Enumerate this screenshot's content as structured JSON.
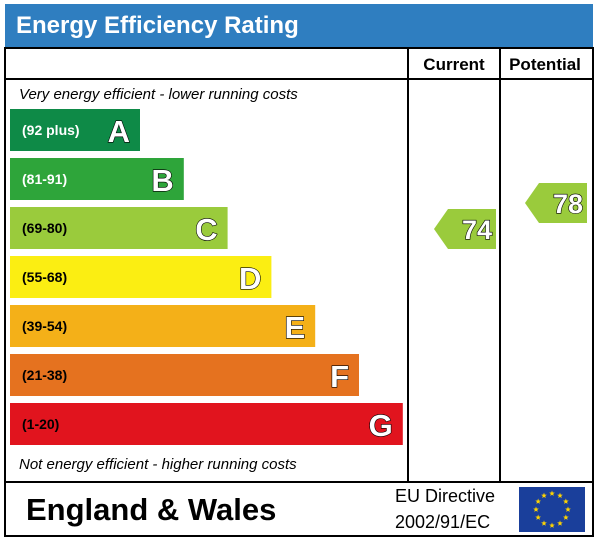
{
  "header": {
    "title": "Energy Efficiency Rating",
    "title_bg": "#2f7ec0"
  },
  "columns": {
    "current": "Current",
    "potential": "Potential"
  },
  "notes": {
    "top": "Very energy efficient - lower running costs",
    "bottom": "Not energy efficient - higher running costs"
  },
  "footer": {
    "country": "England & Wales",
    "directive_line1": "EU Directive",
    "directive_line2": "2002/91/EC",
    "flag_color": "#1a3f9b",
    "star_color": "#ffd400"
  },
  "chart_data": {
    "type": "bar",
    "title": "Energy Efficiency Rating",
    "bands": [
      {
        "letter": "A",
        "range": "(92 plus)",
        "min": 92,
        "max": 100,
        "color": "#0e8a47",
        "label_color": "#ffffff"
      },
      {
        "letter": "B",
        "range": "(81-91)",
        "min": 81,
        "max": 91,
        "color": "#2ea53a",
        "label_color": "#ffffff"
      },
      {
        "letter": "C",
        "range": "(69-80)",
        "min": 69,
        "max": 80,
        "color": "#9acb3c",
        "label_color": "#000000"
      },
      {
        "letter": "D",
        "range": "(55-68)",
        "min": 55,
        "max": 68,
        "color": "#fbee12",
        "label_color": "#000000"
      },
      {
        "letter": "E",
        "range": "(39-54)",
        "min": 39,
        "max": 54,
        "color": "#f4b018",
        "label_color": "#000000"
      },
      {
        "letter": "F",
        "range": "(21-38)",
        "min": 21,
        "max": 38,
        "color": "#e5721f",
        "label_color": "#000000"
      },
      {
        "letter": "G",
        "range": "(1-20)",
        "min": 1,
        "max": 20,
        "color": "#e1141e",
        "label_color": "#000000"
      }
    ],
    "ratings": {
      "current": {
        "value": 74,
        "band": "C",
        "color": "#9acb3c"
      },
      "potential": {
        "value": 78,
        "band": "C",
        "color": "#9acb3c"
      }
    }
  }
}
